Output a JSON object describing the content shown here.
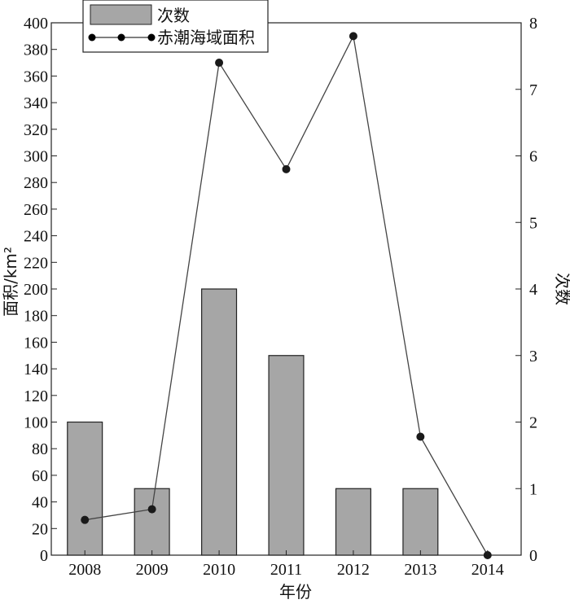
{
  "chart_data": {
    "type": "bar",
    "categories": [
      "2008",
      "2009",
      "2010",
      "2011",
      "2012",
      "2013",
      "2014"
    ],
    "series": [
      {
        "name": "次数",
        "type": "bar",
        "axis": "right",
        "values": [
          2,
          1,
          4,
          3,
          1,
          1,
          0
        ],
        "color": "#a6a6a6"
      },
      {
        "name": "赤潮海域面积",
        "type": "line",
        "axis": "left",
        "values": [
          26.5,
          34.5,
          370,
          290,
          390,
          89,
          0
        ],
        "color": "#1a1a1a"
      }
    ],
    "xlabel": "年份",
    "ylabel_left": "面积/km²",
    "ylabel_right": "次数",
    "ylim_left": [
      0,
      400
    ],
    "ylim_right": [
      0,
      8
    ],
    "yticks_left": [
      "0",
      "20",
      "40",
      "60",
      "80",
      "100",
      "120",
      "140",
      "160",
      "180",
      "200",
      "220",
      "240",
      "260",
      "280",
      "300",
      "320",
      "340",
      "360",
      "380",
      "400"
    ],
    "yticks_right": [
      "0",
      "1",
      "2",
      "3",
      "4",
      "5",
      "6",
      "7",
      "8"
    ],
    "legend_position": "top-left",
    "grid": false
  }
}
